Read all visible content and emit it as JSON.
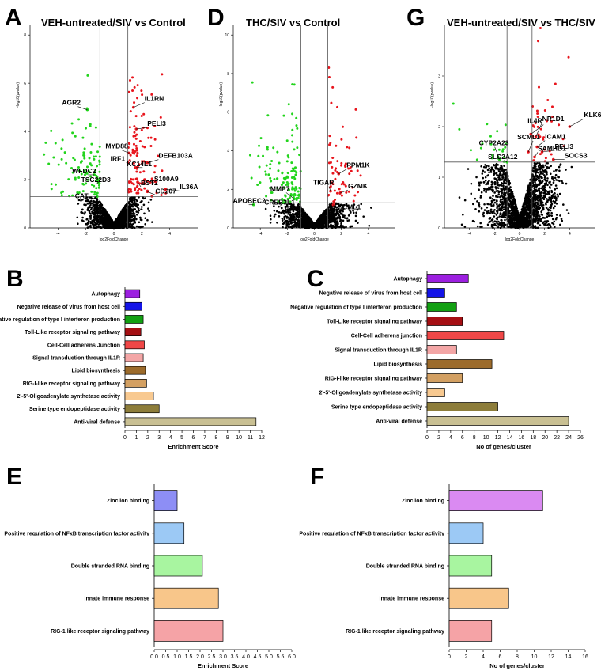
{
  "colors": {
    "up": "#e8141c",
    "down": "#22d41c",
    "ns": "#000000"
  },
  "chart_data": [
    {
      "id": "A",
      "type": "scatter",
      "panel_label": "A",
      "title": "VEH-untreated/SIV vs Control",
      "xlabel": "log2FoldChange",
      "ylabel": "-log10(pvalue)",
      "xlim": [
        -6,
        6
      ],
      "ylim": [
        0,
        8.4
      ],
      "xticks": [
        -4,
        -2,
        0,
        2,
        4
      ],
      "yticks": [
        0,
        2,
        4,
        6,
        8
      ],
      "cutoff_x": [
        -1,
        1
      ],
      "cutoff_y": 1.3,
      "genes": [
        {
          "name": "AGR2",
          "x": -1.9,
          "y": 4.9,
          "side": "down"
        },
        {
          "name": "IL1RN",
          "x": 1.4,
          "y": 5.0,
          "side": "up"
        },
        {
          "name": "PELI3",
          "x": 1.6,
          "y": 4.1,
          "side": "up"
        },
        {
          "name": "MYD88",
          "x": 1.1,
          "y": 3.1,
          "side": "up"
        },
        {
          "name": "DEFB103A",
          "x": 2.4,
          "y": 2.7,
          "side": "up"
        },
        {
          "name": "IRF1",
          "x": 1.0,
          "y": 2.7,
          "side": "up"
        },
        {
          "name": "KC14L1",
          "x": 1.6,
          "y": 2.5,
          "side": "up"
        },
        {
          "name": "S100A9",
          "x": 2.2,
          "y": 2.0,
          "side": "up"
        },
        {
          "name": "WFDC2",
          "x": -1.4,
          "y": 2.2,
          "side": "down"
        },
        {
          "name": "TSC22D3",
          "x": -1.1,
          "y": 1.9,
          "side": "down"
        },
        {
          "name": "BST2",
          "x": 1.7,
          "y": 1.9,
          "side": "up"
        },
        {
          "name": "CD207",
          "x": 2.4,
          "y": 1.5,
          "side": "up"
        },
        {
          "name": "IL36A",
          "x": 3.7,
          "y": 1.6,
          "side": "up"
        },
        {
          "name": "CAT",
          "x": -1.2,
          "y": 1.3,
          "side": "down"
        }
      ]
    },
    {
      "id": "D",
      "type": "scatter",
      "panel_label": "D",
      "title": "THC/SIV vs Control",
      "xlabel": "log2FoldChange",
      "ylabel": "-log10(pvalue)",
      "xlim": [
        -6,
        6
      ],
      "ylim": [
        0,
        10.5
      ],
      "xticks": [
        -4,
        -2,
        0,
        2,
        4
      ],
      "yticks": [
        0,
        2,
        4,
        6,
        8,
        10
      ],
      "cutoff_x": [
        -1,
        1
      ],
      "cutoff_y": 1.3,
      "genes": [
        {
          "name": "PPM1K",
          "x": 1.8,
          "y": 2.8,
          "side": "up"
        },
        {
          "name": "TIGAR",
          "x": 1.2,
          "y": 1.9,
          "side": "up"
        },
        {
          "name": "GZMK",
          "x": 1.9,
          "y": 1.8,
          "side": "up"
        },
        {
          "name": "MMP7",
          "x": -1.5,
          "y": 1.5,
          "side": "down"
        },
        {
          "name": "SCML1",
          "x": 1.4,
          "y": 1.2,
          "side": "up"
        },
        {
          "name": "APOBEC2",
          "x": -4.5,
          "y": 1.2,
          "side": "down"
        },
        {
          "name": "CREB3L1",
          "x": -2.3,
          "y": 1.3,
          "side": "down"
        }
      ]
    },
    {
      "id": "G",
      "type": "scatter",
      "panel_label": "G",
      "title": "VEH-untreated/SIV vs THC/SIV",
      "xlabel": "log2FoldChange",
      "ylabel": "-log10(pvalue)",
      "xlim": [
        -6,
        6
      ],
      "ylim": [
        0,
        4.0
      ],
      "xticks": [
        -4,
        -2,
        0,
        2,
        4
      ],
      "yticks": [
        0,
        1,
        2,
        3
      ],
      "cutoff_x": [
        -1,
        1
      ],
      "cutoff_y": 1.3,
      "genes": [
        {
          "name": "IL4R",
          "x": 0.9,
          "y": 1.85,
          "side": "up"
        },
        {
          "name": "NR1D1",
          "x": 1.3,
          "y": 1.8,
          "side": "up"
        },
        {
          "name": "KLK6",
          "x": 4.0,
          "y": 2.0,
          "side": "up"
        },
        {
          "name": "ICAM1",
          "x": 1.4,
          "y": 1.6,
          "side": "up"
        },
        {
          "name": "CYP2A23",
          "x": -1.6,
          "y": 1.35,
          "side": "down"
        },
        {
          "name": "SCML1",
          "x": 0.7,
          "y": 1.5,
          "side": "up"
        },
        {
          "name": "PELI3",
          "x": 1.8,
          "y": 1.5,
          "side": "up"
        },
        {
          "name": "SAMHD1",
          "x": 1.2,
          "y": 1.4,
          "side": "up"
        },
        {
          "name": "SLC2A12",
          "x": -1.0,
          "y": 1.3,
          "side": "down"
        },
        {
          "name": "SOCS3",
          "x": 2.7,
          "y": 1.35,
          "side": "up"
        }
      ]
    },
    {
      "id": "B",
      "type": "bar",
      "orientation": "horizontal",
      "panel_label": "B",
      "title": "",
      "xlabel": "Enrichment Score",
      "ylabel": "",
      "xlim": [
        0,
        12
      ],
      "xticks": [
        0,
        1,
        2,
        3,
        4,
        5,
        6,
        7,
        8,
        9,
        10,
        11,
        12
      ],
      "categories": [
        "Autophagy",
        "Negative release of virus from host cell",
        "Negative regulation of type I interferon production",
        "Toll-Like receptor signaling pathway",
        "Cell-Cell adherens Junction",
        "Signal transduction through IL1R",
        "Lipid biosynthesis",
        "RIG-I-like receptor signaling pathway",
        "2'-5'-Oligoadenylate synthetase activity",
        "Serine type endopeptidase activity",
        "Anti-viral defense"
      ],
      "values": [
        1.3,
        1.5,
        1.6,
        1.4,
        1.7,
        1.6,
        1.8,
        1.9,
        2.5,
        3.0,
        11.5
      ],
      "bar_colors": [
        "#9c1fe0",
        "#1414e8",
        "#12a012",
        "#a50f13",
        "#f04747",
        "#f3a6a6",
        "#9c6b2b",
        "#d3a062",
        "#f8c990",
        "#8d7d3a",
        "#c9c093"
      ]
    },
    {
      "id": "C",
      "type": "bar",
      "orientation": "horizontal",
      "panel_label": "C",
      "title": "",
      "xlabel": "No of genes/cluster",
      "ylabel": "",
      "xlim": [
        0,
        26
      ],
      "xticks": [
        0,
        2,
        4,
        6,
        8,
        10,
        12,
        14,
        16,
        18,
        20,
        22,
        24,
        26
      ],
      "categories": [
        "Autophagy",
        "Negative release of virus from host cell",
        "Negative regulation of type I interferon production",
        "Toll-Like receptor signaling pathway",
        "Cell-Cell adherens junction",
        "Signal transduction through IL1R",
        "Lipid biosynthesis",
        "RIG-I-like receptor signaling pathway",
        "2'-5'-Oligoadenylate synthetase activity",
        "Serine type endopeptidase activity",
        "Anti-viral defense"
      ],
      "values": [
        7,
        3,
        5,
        6,
        13,
        5,
        11,
        6,
        3,
        12,
        24
      ],
      "bar_colors": [
        "#9c1fe0",
        "#1414e8",
        "#12a012",
        "#a50f13",
        "#f04747",
        "#f3a6a6",
        "#9c6b2b",
        "#d3a062",
        "#f8c990",
        "#8d7d3a",
        "#c9c093"
      ]
    },
    {
      "id": "E",
      "type": "bar",
      "orientation": "horizontal",
      "panel_label": "E",
      "title": "",
      "xlabel": "Enrichment Score",
      "ylabel": "",
      "xlim": [
        0,
        6
      ],
      "xticks": [
        "0.0",
        "0.5",
        "1.0",
        "1.5",
        "2.0",
        "2.5",
        "3.0",
        "3.5",
        "4.0",
        "4.5",
        "5.0",
        "5.5",
        "6.0"
      ],
      "categories": [
        "Zinc ion binding",
        "Positive regulation of NFκB transcription factor activity",
        "Double stranded RNA binding",
        "Innate immune response",
        "RIG-1 like receptor signaling pathway"
      ],
      "values": [
        1.0,
        1.3,
        2.1,
        2.8,
        3.0
      ],
      "bar_colors": [
        "#8d8ef5",
        "#9cc9f5",
        "#a8f5a0",
        "#f8c68a",
        "#f5a3a6"
      ]
    },
    {
      "id": "F",
      "type": "bar",
      "orientation": "horizontal",
      "panel_label": "F",
      "title": "",
      "xlabel": "No of genes/cluster",
      "ylabel": "",
      "xlim": [
        0,
        16
      ],
      "xticks": [
        0,
        2,
        4,
        6,
        8,
        10,
        12,
        14,
        16
      ],
      "categories": [
        "Zinc ion binding",
        "Positive regulation of NFκB transcription factor activity",
        "Double stranded RNA binding",
        "Innate immune response",
        "RIG-1 like receptor signaling pathway"
      ],
      "values": [
        11,
        4,
        5,
        7,
        5
      ],
      "bar_colors": [
        "#da8af2",
        "#9cc9f5",
        "#a8f5a0",
        "#f8c68a",
        "#f5a3a6"
      ]
    }
  ]
}
